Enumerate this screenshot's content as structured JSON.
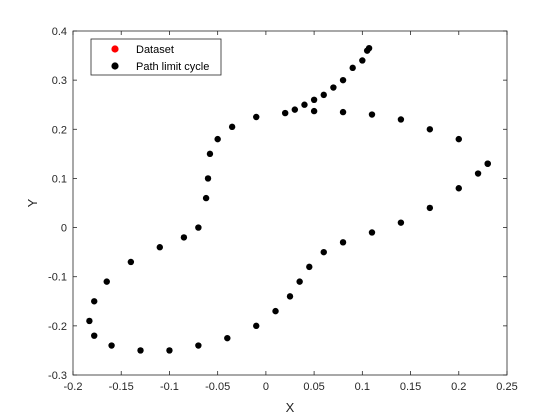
{
  "chart_data": {
    "type": "scatter",
    "xlabel": "X",
    "ylabel": "Y",
    "xlim": [
      -0.2,
      0.25
    ],
    "ylim": [
      -0.3,
      0.4
    ],
    "xticks": [
      -0.2,
      -0.15,
      -0.1,
      -0.05,
      0,
      0.05,
      0.1,
      0.15,
      0.2,
      0.25
    ],
    "xtick_labels": [
      "-0.2",
      "-0.15",
      "-0.1",
      "-0.05",
      "0",
      "0.05",
      "0.1",
      "0.15",
      "0.2",
      "0.25"
    ],
    "yticks": [
      -0.3,
      -0.2,
      -0.1,
      0,
      0.1,
      0.2,
      0.3,
      0.4
    ],
    "ytick_labels": [
      "-0.3",
      "-0.2",
      "-0.1",
      "0",
      "0.1",
      "0.2",
      "0.3",
      "0.4"
    ],
    "grid": false,
    "legend_position": "top-left",
    "series": [
      {
        "name": "Dataset",
        "color": "#ff0000",
        "marker": "dot",
        "x": [
          0.23,
          0.2,
          0.17,
          0.14,
          0.11,
          0.08,
          0.05,
          0.02,
          -0.01,
          -0.035,
          -0.05,
          -0.058,
          -0.06,
          -0.062,
          -0.07,
          -0.085,
          -0.11,
          -0.14,
          -0.165,
          -0.178,
          -0.183,
          -0.178,
          -0.16,
          -0.13,
          -0.1,
          -0.07,
          -0.04,
          -0.01,
          0.01,
          0.025,
          0.035,
          0.045,
          0.06,
          0.08,
          0.11,
          0.14,
          0.17,
          0.2,
          0.22,
          0.23
        ],
        "y": [
          0.13,
          0.18,
          0.2,
          0.22,
          0.23,
          0.235,
          0.237,
          0.233,
          0.225,
          0.205,
          0.18,
          0.15,
          0.1,
          0.06,
          0.0,
          -0.02,
          -0.04,
          -0.07,
          -0.11,
          -0.15,
          -0.19,
          -0.22,
          -0.24,
          -0.25,
          -0.25,
          -0.24,
          -0.225,
          -0.2,
          -0.17,
          -0.14,
          -0.11,
          -0.08,
          -0.05,
          -0.03,
          -0.01,
          0.01,
          0.04,
          0.08,
          0.11,
          0.13
        ]
      },
      {
        "name": "Path limit cycle",
        "color": "#000000",
        "marker": "dot",
        "x": [
          0.23,
          0.2,
          0.17,
          0.14,
          0.11,
          0.08,
          0.05,
          0.02,
          -0.01,
          -0.035,
          -0.05,
          -0.058,
          -0.06,
          -0.062,
          -0.07,
          -0.085,
          -0.11,
          -0.14,
          -0.165,
          -0.178,
          -0.183,
          -0.178,
          -0.16,
          -0.13,
          -0.1,
          -0.07,
          -0.04,
          -0.01,
          0.01,
          0.025,
          0.035,
          0.045,
          0.06,
          0.08,
          0.11,
          0.14,
          0.17,
          0.2,
          0.22,
          0.23,
          0.03,
          0.04,
          0.05,
          0.06,
          0.07,
          0.08,
          0.09,
          0.1,
          0.105,
          0.107
        ],
        "y": [
          0.13,
          0.18,
          0.2,
          0.22,
          0.23,
          0.235,
          0.237,
          0.233,
          0.225,
          0.205,
          0.18,
          0.15,
          0.1,
          0.06,
          0.0,
          -0.02,
          -0.04,
          -0.07,
          -0.11,
          -0.15,
          -0.19,
          -0.22,
          -0.24,
          -0.25,
          -0.25,
          -0.24,
          -0.225,
          -0.2,
          -0.17,
          -0.14,
          -0.11,
          -0.08,
          -0.05,
          -0.03,
          -0.01,
          0.01,
          0.04,
          0.08,
          0.11,
          0.13,
          0.24,
          0.25,
          0.26,
          0.27,
          0.285,
          0.3,
          0.325,
          0.34,
          0.36,
          0.365
        ]
      }
    ]
  }
}
